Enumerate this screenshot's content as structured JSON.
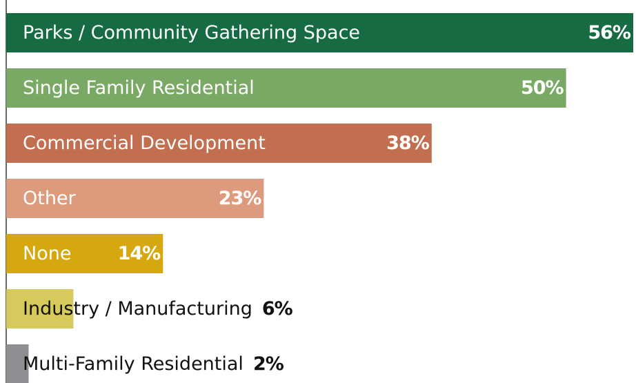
{
  "chart_data": {
    "type": "bar",
    "orientation": "horizontal",
    "categories": [
      "Parks / Community Gathering Space",
      "Single Family Residential",
      "Commercial Development",
      "Other",
      "None",
      "Industry / Manufacturing",
      "Multi-Family Residential"
    ],
    "values": [
      56,
      50,
      38,
      23,
      14,
      6,
      2
    ],
    "value_labels": [
      "56%",
      "50%",
      "38%",
      "23%",
      "14%",
      "6%",
      "2%"
    ],
    "colors": [
      "#176b43",
      "#7aa965",
      "#c16f50",
      "#dc9b7d",
      "#d4a80e",
      "#d6ca5c",
      "#8f8f93"
    ]
  }
}
